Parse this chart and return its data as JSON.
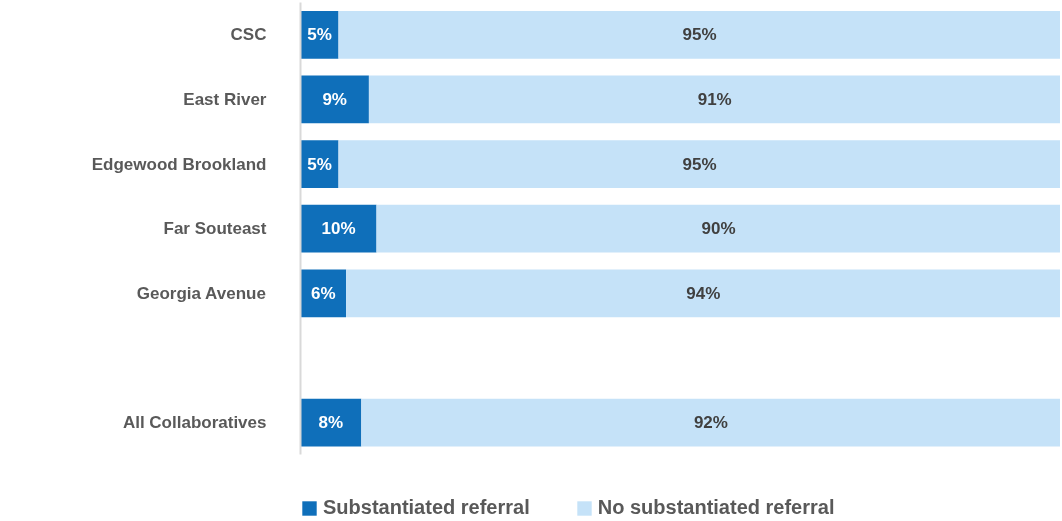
{
  "chart_data": {
    "type": "bar",
    "orientation": "horizontal",
    "stacked": true,
    "categories": [
      "CSC",
      "East River",
      "Edgewood Brookland",
      "Far Souteast",
      "Georgia Avenue",
      null,
      "All Collaboratives"
    ],
    "series": [
      {
        "name": "Substantiated referral",
        "color": "#0f6fba",
        "values": [
          5,
          9,
          5,
          10,
          6,
          null,
          8
        ],
        "value_labels": [
          "5%",
          "9%",
          "5%",
          "10%",
          "6%",
          null,
          "8%"
        ]
      },
      {
        "name": "No substantiated referral",
        "color": "#c5e2f8",
        "values": [
          95,
          91,
          95,
          90,
          94,
          null,
          92
        ],
        "value_labels": [
          "95%",
          "91%",
          "95%",
          "90%",
          "94%",
          null,
          "92%"
        ]
      }
    ],
    "xlim": [
      0,
      100
    ],
    "tick_labels": "y",
    "grid": false,
    "legend": "bottom"
  }
}
